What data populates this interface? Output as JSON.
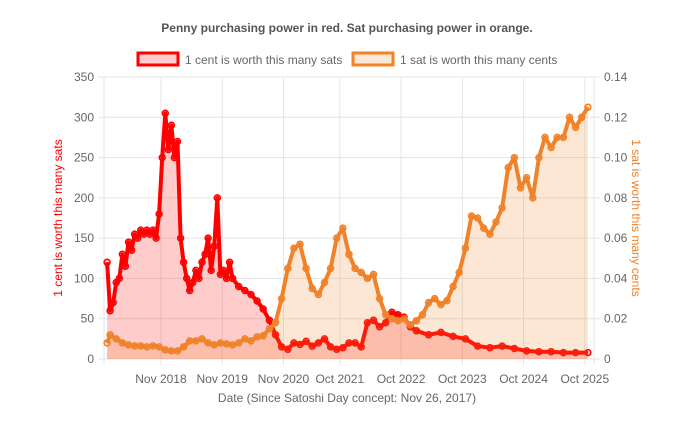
{
  "chart_data": {
    "type": "line",
    "title": "Penny purchasing power in red. Sat purchasing power in orange.",
    "xlabel": "Date (Since Satoshi Day concept: Nov 26, 2017)",
    "x_ticks": [
      "Nov 2018",
      "Nov 2019",
      "Nov 2020",
      "Oct 2021",
      "Oct 2022",
      "Oct 2023",
      "Oct 2024",
      "Oct 2025"
    ],
    "x_tick_years": [
      2018.83,
      2019.83,
      2020.83,
      2021.75,
      2022.75,
      2023.75,
      2024.75,
      2025.75
    ],
    "xlim": [
      2017.9,
      2025.9
    ],
    "y_left": {
      "label": "1 cent is worth this many sats",
      "ticks": [
        "0",
        "50",
        "100",
        "150",
        "200",
        "250",
        "300",
        "350"
      ],
      "ylim": [
        0,
        350
      ],
      "color": "#ff0000"
    },
    "y_right": {
      "label": "1 sat is worth this many cents",
      "ticks": [
        "0",
        "0.02",
        "0.04",
        "0.06",
        "0.08",
        "0.10",
        "0.12",
        "0.14"
      ],
      "ylim": [
        0,
        0.14
      ],
      "color": "#f0822a"
    },
    "series": [
      {
        "name": "1 cent is worth this many sats",
        "axis": "left",
        "color": "#ff0000",
        "fill": "rgba(255,0,0,0.2)",
        "x": [
          2017.95,
          2018.0,
          2018.05,
          2018.1,
          2018.15,
          2018.2,
          2018.25,
          2018.3,
          2018.35,
          2018.4,
          2018.45,
          2018.5,
          2018.55,
          2018.6,
          2018.65,
          2018.7,
          2018.75,
          2018.8,
          2018.85,
          2018.9,
          2018.95,
          2019.0,
          2019.05,
          2019.1,
          2019.15,
          2019.2,
          2019.25,
          2019.3,
          2019.35,
          2019.4,
          2019.45,
          2019.5,
          2019.55,
          2019.6,
          2019.65,
          2019.7,
          2019.75,
          2019.8,
          2019.85,
          2019.9,
          2019.95,
          2020.0,
          2020.1,
          2020.2,
          2020.3,
          2020.4,
          2020.5,
          2020.6,
          2020.7,
          2020.8,
          2020.9,
          2021.0,
          2021.1,
          2021.2,
          2021.3,
          2021.4,
          2021.5,
          2021.6,
          2021.7,
          2021.8,
          2021.9,
          2022.0,
          2022.1,
          2022.2,
          2022.3,
          2022.4,
          2022.5,
          2022.6,
          2022.7,
          2022.8,
          2022.9,
          2023.0,
          2023.2,
          2023.4,
          2023.6,
          2023.8,
          2024.0,
          2024.2,
          2024.4,
          2024.6,
          2024.8,
          2025.0,
          2025.2,
          2025.4,
          2025.6,
          2025.8
        ],
        "values": [
          120,
          60,
          70,
          95,
          100,
          130,
          115,
          145,
          135,
          155,
          150,
          160,
          155,
          160,
          155,
          160,
          150,
          180,
          250,
          305,
          260,
          290,
          250,
          270,
          150,
          120,
          100,
          85,
          95,
          110,
          100,
          120,
          130,
          150,
          110,
          140,
          200,
          105,
          110,
          100,
          120,
          100,
          90,
          85,
          80,
          72,
          62,
          48,
          30,
          15,
          12,
          20,
          18,
          22,
          16,
          20,
          25,
          15,
          12,
          14,
          20,
          20,
          15,
          45,
          48,
          40,
          45,
          58,
          55,
          52,
          40,
          35,
          30,
          33,
          28,
          25,
          16,
          14,
          16,
          13,
          10,
          9,
          9,
          8,
          8,
          8
        ]
      },
      {
        "name": "1 sat is worth this many cents",
        "axis": "right",
        "color": "#f0822a",
        "fill": "rgba(240,130,42,0.2)",
        "x": [
          2017.95,
          2018.0,
          2018.1,
          2018.2,
          2018.3,
          2018.4,
          2018.5,
          2018.6,
          2018.7,
          2018.8,
          2018.9,
          2019.0,
          2019.1,
          2019.2,
          2019.3,
          2019.4,
          2019.5,
          2019.6,
          2019.7,
          2019.8,
          2019.9,
          2020.0,
          2020.1,
          2020.2,
          2020.3,
          2020.4,
          2020.5,
          2020.6,
          2020.7,
          2020.8,
          2020.9,
          2021.0,
          2021.1,
          2021.2,
          2021.3,
          2021.4,
          2021.5,
          2021.6,
          2021.7,
          2021.8,
          2021.9,
          2022.0,
          2022.1,
          2022.2,
          2022.3,
          2022.4,
          2022.5,
          2022.6,
          2022.7,
          2022.8,
          2022.9,
          2023.0,
          2023.1,
          2023.2,
          2023.3,
          2023.4,
          2023.5,
          2023.6,
          2023.7,
          2023.8,
          2023.9,
          2024.0,
          2024.1,
          2024.2,
          2024.3,
          2024.4,
          2024.5,
          2024.6,
          2024.7,
          2024.8,
          2024.9,
          2025.0,
          2025.1,
          2025.2,
          2025.3,
          2025.4,
          2025.5,
          2025.6,
          2025.7,
          2025.8
        ],
        "values": [
          0.008,
          0.012,
          0.01,
          0.008,
          0.007,
          0.0065,
          0.0065,
          0.006,
          0.0065,
          0.006,
          0.0045,
          0.004,
          0.004,
          0.006,
          0.009,
          0.009,
          0.01,
          0.008,
          0.007,
          0.008,
          0.0075,
          0.007,
          0.008,
          0.01,
          0.009,
          0.011,
          0.0115,
          0.015,
          0.018,
          0.03,
          0.045,
          0.055,
          0.057,
          0.045,
          0.035,
          0.032,
          0.038,
          0.045,
          0.06,
          0.065,
          0.052,
          0.045,
          0.043,
          0.04,
          0.042,
          0.03,
          0.022,
          0.02,
          0.019,
          0.02,
          0.017,
          0.019,
          0.022,
          0.028,
          0.03,
          0.027,
          0.029,
          0.036,
          0.043,
          0.055,
          0.071,
          0.07,
          0.065,
          0.062,
          0.068,
          0.075,
          0.095,
          0.1,
          0.085,
          0.09,
          0.08,
          0.1,
          0.11,
          0.105,
          0.11,
          0.11,
          0.12,
          0.115,
          0.12,
          0.125
        ]
      }
    ],
    "legend": [
      {
        "label": "1 cent is worth this many sats",
        "color": "#ff0000",
        "fill": "rgba(255,0,0,0.2)"
      },
      {
        "label": "1 sat is worth this many cents",
        "color": "#f0822a",
        "fill": "rgba(240,130,42,0.2)"
      }
    ],
    "legend_position": "top"
  }
}
